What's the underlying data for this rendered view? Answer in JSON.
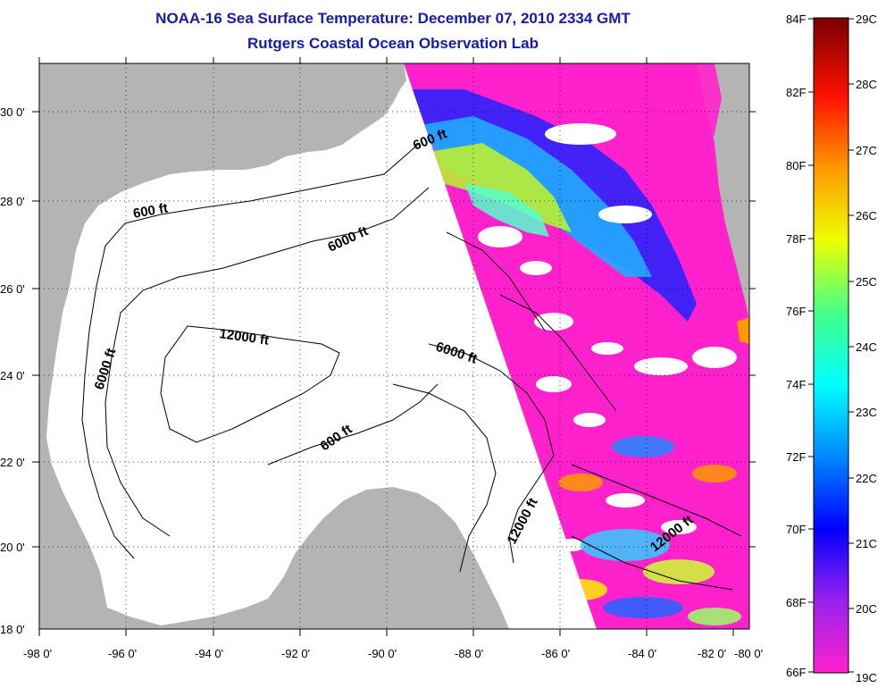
{
  "title": {
    "line1": "NOAA-16 Sea Surface Temperature:  December 07, 2010 2334 GMT",
    "line2": "Rutgers Coastal Ocean Observation Lab"
  },
  "map": {
    "lon_labels": [
      "-98 0'",
      "-96 0'",
      "-94 0'",
      "-92 0'",
      "-90 0'",
      "-88 0'",
      "-86 0'",
      "-84 0'",
      "-82 0'",
      "-80 0'"
    ],
    "lat_labels": [
      "30 0'",
      "28 0'",
      "26 0'",
      "24 0'",
      "22 0'",
      "20 0'",
      "18 0'"
    ],
    "contour_labels": [
      "600 ft",
      "600 ft",
      "6000 ft",
      "12000 ft",
      "6000 ft",
      "6000 ft",
      "600 ft",
      "12000 ft",
      "12000 ft"
    ],
    "colors": {
      "land": "#b4b4b4",
      "ocean_nodata": "#ffffff",
      "grid": "#000000"
    }
  },
  "colorbar": {
    "fahrenheit_labels": [
      "84F",
      "82F",
      "80F",
      "78F",
      "76F",
      "74F",
      "72F",
      "70F",
      "68F",
      "66F"
    ],
    "celsius_labels": [
      "29C",
      "28C",
      "27C",
      "26C",
      "25C",
      "24C",
      "23C",
      "22C",
      "21C",
      "20C",
      "19C"
    ],
    "gradient": [
      "#ff22cc",
      "#9922ee",
      "#0000ff",
      "#0088ff",
      "#00ffff",
      "#44ff88",
      "#eeff00",
      "#ff9900",
      "#ff1100",
      "#7a0000"
    ]
  }
}
